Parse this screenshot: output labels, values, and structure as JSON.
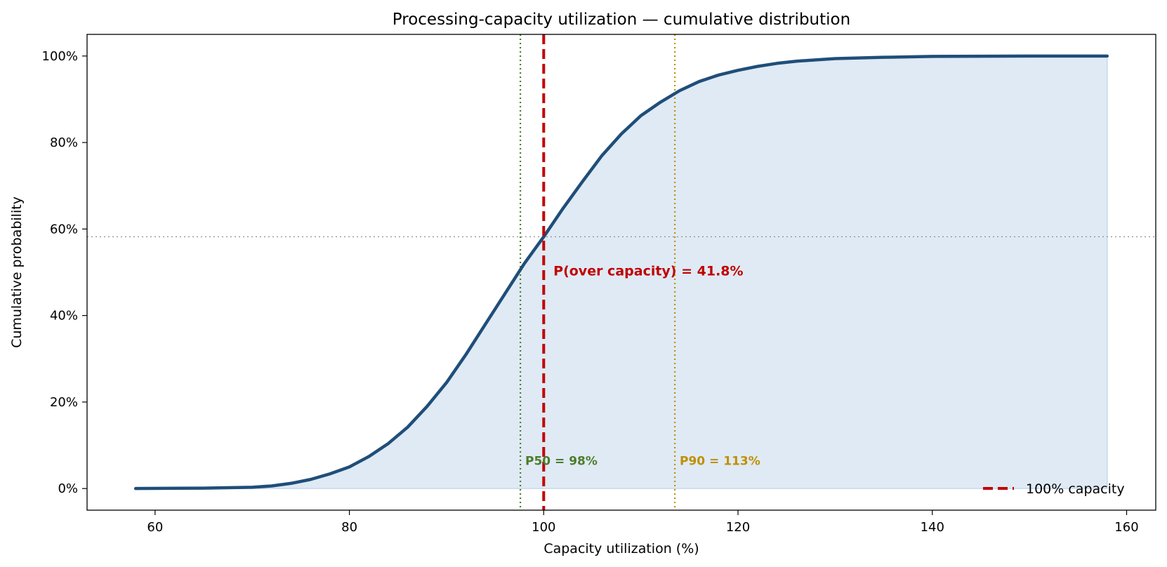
{
  "chart_data": {
    "type": "line",
    "title": "Processing-capacity utilization — cumulative distribution",
    "xlabel": "Capacity utilization  (%)",
    "ylabel": "Cumulative probability",
    "xlim": [
      53,
      163
    ],
    "ylim": [
      -0.05,
      1.05
    ],
    "x_ticks": [
      60,
      80,
      100,
      120,
      140,
      160
    ],
    "x_tick_labels": [
      "60",
      "80",
      "100",
      "120",
      "140",
      "160"
    ],
    "y_ticks": [
      0,
      0.2,
      0.4,
      0.6,
      0.8,
      1.0
    ],
    "y_tick_labels": [
      "0%",
      "20%",
      "40%",
      "60%",
      "80%",
      "100%"
    ],
    "grid": false,
    "series": [
      {
        "x": [
          58,
          65,
          70,
          72,
          74,
          76,
          78,
          80,
          82,
          84,
          86,
          88,
          90,
          92,
          94,
          96,
          98,
          100,
          102,
          104,
          106,
          108,
          110,
          112,
          114,
          116,
          118,
          120,
          122,
          124,
          126,
          130,
          135,
          140,
          150,
          158
        ],
        "y": [
          0.0,
          0.001,
          0.003,
          0.006,
          0.012,
          0.021,
          0.034,
          0.05,
          0.074,
          0.104,
          0.142,
          0.19,
          0.245,
          0.31,
          0.38,
          0.45,
          0.52,
          0.582,
          0.648,
          0.71,
          0.77,
          0.82,
          0.862,
          0.893,
          0.92,
          0.941,
          0.956,
          0.967,
          0.976,
          0.983,
          0.988,
          0.994,
          0.997,
          0.999,
          1.0,
          1.0
        ],
        "color": "#1f4e79",
        "fill_color": "#dfeaf5"
      }
    ],
    "reference_lines": [
      {
        "type": "vertical",
        "x": 100,
        "style": "dashed",
        "color": "#c00000"
      },
      {
        "type": "vertical",
        "x": 97.6,
        "style": "dotted",
        "color": "#4d7c2a"
      },
      {
        "type": "vertical",
        "x": 113.5,
        "style": "dotted",
        "color": "#c09000"
      },
      {
        "type": "horizontal",
        "y": 0.582,
        "style": "dotted",
        "color": "#888888"
      }
    ],
    "annotations": [
      {
        "text": "P(over capacity) = 41.8%",
        "x": 101,
        "y": 0.493,
        "color": "#c00000",
        "size": "large"
      },
      {
        "text": "P50 = 98%",
        "x": 98.1,
        "y": 0.055,
        "color": "#4d7c2a",
        "size": "small"
      },
      {
        "text": "P90 = 113%",
        "x": 114,
        "y": 0.055,
        "color": "#c09000",
        "size": "small"
      }
    ],
    "legend": {
      "position": "bottom-right",
      "entries": [
        {
          "label": "100% capacity",
          "color": "#c00000",
          "style": "dashed"
        }
      ]
    }
  }
}
